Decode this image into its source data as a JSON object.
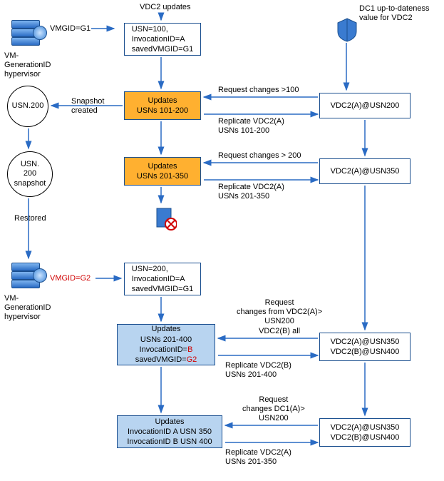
{
  "colors": {
    "border": "#1b4f8f",
    "arrow": "#2a6bc4",
    "orange": "#ffb030",
    "blue": "#b8d4f0",
    "red": "#d00000",
    "white": "#ffffff"
  },
  "labels": {
    "vdc2updates": "VDC2 updates",
    "dc1header": "DC1 up-to-dateness\nvalue for VDC2",
    "vmgen1": "VM-\nGenerationID\nhypervisor",
    "vmgen2": "VM-\nGenerationID\nhypervisor",
    "vmgid_g1": "VMGID=G1",
    "vmgid_g2": "VMGID=G2",
    "snapshot_created": "Snapshot\ncreated",
    "restored": "Restored",
    "req_gt100": "Request changes >100",
    "repl_101_200": "Replicate VDC2(A)\nUSNs 101-200",
    "req_gt200": "Request changes > 200",
    "repl_201_350": "Replicate VDC2(A)\nUSNs 201-350",
    "req_a_b": "Request\nchanges from VDC2(A)>\nUSN200\nVDC2(B) all",
    "repl_b_201_400": "Replicate VDC2(B)\nUSNs 201-400",
    "req_dc1a": "Request\nchanges DC1(A)>\nUSN200",
    "repl_a_201_350": "Replicate VDC2(A)\nUSNs 201-350"
  },
  "nodes": {
    "usn100": "USN=100,\nInvocationID=A\nsavedVMGID=G1",
    "usn200box": "USN=200,\nInvocationID=A\nsavedVMGID=G1",
    "upd101": "Updates\nUSNs 101-200",
    "upd201": "Updates\nUSNs 201-350",
    "upd201_400_a": "Updates\nUSNs 201-400\nInvocationID=",
    "upd201_400_b": "B",
    "upd201_400_c": "savedVMGID=",
    "upd201_400_d": "G2",
    "upd_inv_ab": "Updates\nInvocationID A USN 350\nInvocationID B USN 400",
    "usn200_circ": "USN.200",
    "usn200_snap": "USN.\n200\nsnapshot",
    "right1": "VDC2(A)@USN200",
    "right2": "VDC2(A)@USN350",
    "right3": "VDC2(A)@USN350\nVDC2(B)@USN400",
    "right4": "VDC2(A)@USN350\nVDC2(B)@USN400"
  }
}
